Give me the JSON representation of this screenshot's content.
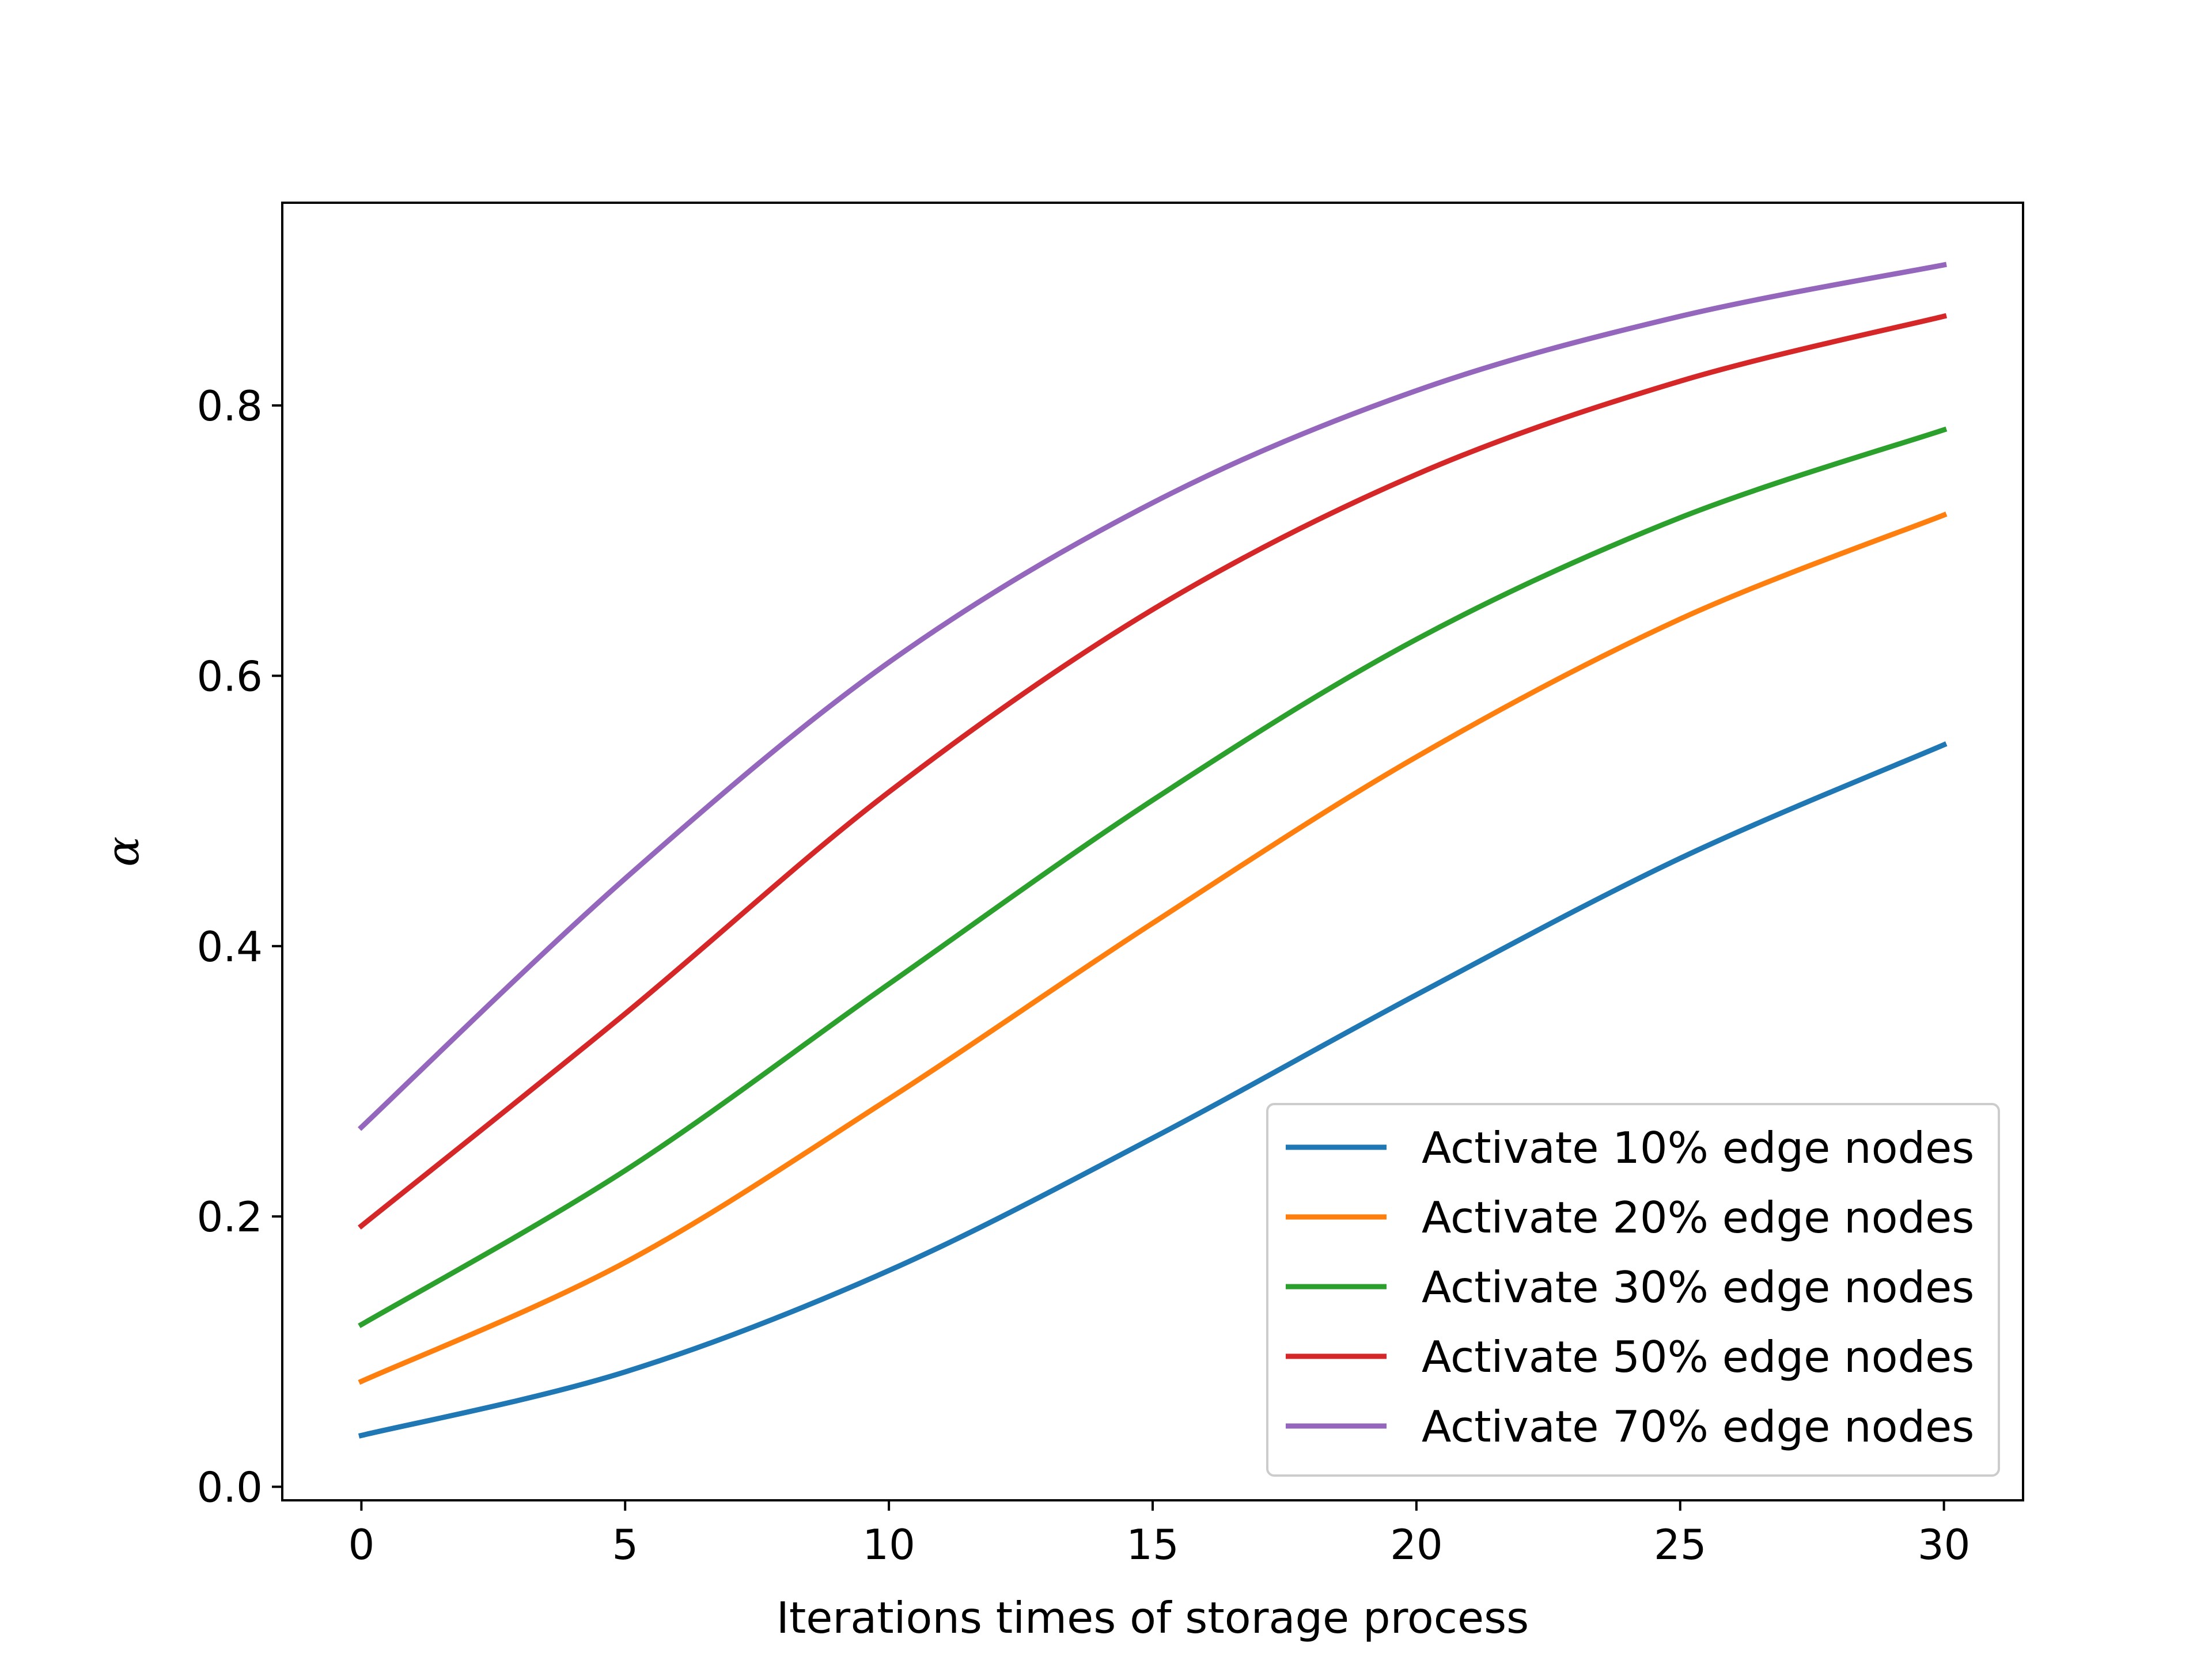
{
  "chart_data": {
    "type": "line",
    "title": "",
    "xlabel": "Iterations times of storage process",
    "ylabel": "α",
    "xlim": [
      -1.5,
      31.5
    ],
    "ylim": [
      -0.01,
      0.95
    ],
    "xticks": [
      0,
      5,
      10,
      15,
      20,
      25,
      30
    ],
    "xtick_labels": [
      "0",
      "5",
      "10",
      "15",
      "20",
      "25",
      "30"
    ],
    "yticks": [
      0.0,
      0.2,
      0.4,
      0.6,
      0.8
    ],
    "ytick_labels": [
      "0.0",
      "0.2",
      "0.4",
      "0.6",
      "0.8"
    ],
    "grid": false,
    "legend_position": "lower-right",
    "x": [
      0,
      5,
      10,
      15,
      20,
      25,
      30
    ],
    "series": [
      {
        "name": "Activate 10% edge nodes",
        "color": "#1f77b4",
        "values": [
          0.038,
          0.085,
          0.16,
          0.258,
          0.364,
          0.465,
          0.549
        ]
      },
      {
        "name": "Activate 20% edge nodes",
        "color": "#ff7f0e",
        "values": [
          0.078,
          0.166,
          0.287,
          0.417,
          0.54,
          0.642,
          0.719
        ]
      },
      {
        "name": "Activate 30% edge nodes",
        "color": "#2ca02c",
        "values": [
          0.12,
          0.234,
          0.372,
          0.508,
          0.627,
          0.717,
          0.782
        ]
      },
      {
        "name": "Activate 50% edge nodes",
        "color": "#d62728",
        "values": [
          0.193,
          0.35,
          0.514,
          0.649,
          0.749,
          0.818,
          0.866
        ]
      },
      {
        "name": "Activate 70% edge nodes",
        "color": "#9467bd",
        "values": [
          0.266,
          0.45,
          0.61,
          0.728,
          0.811,
          0.866,
          0.904
        ]
      }
    ]
  }
}
